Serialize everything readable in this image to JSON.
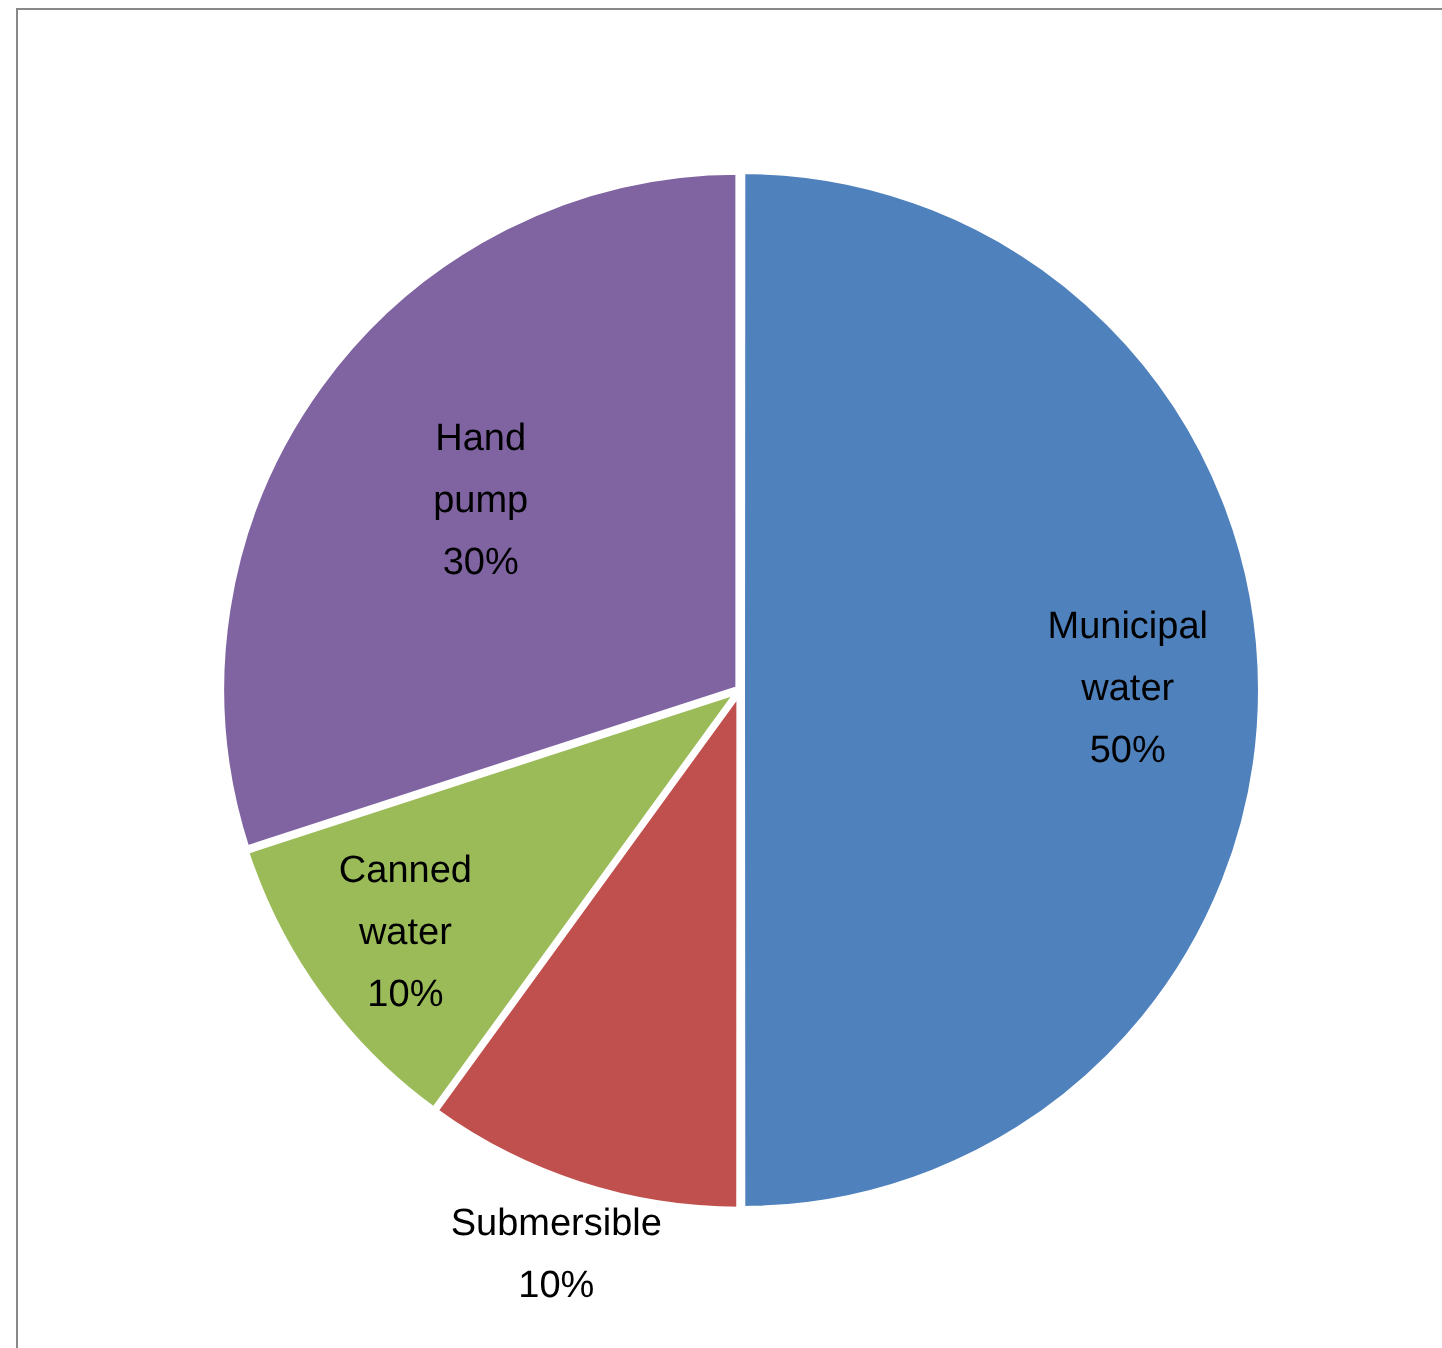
{
  "chart_data": {
    "type": "pie",
    "categories": [
      "Municipal water",
      "Submersible",
      "Canned water",
      "Hand pump"
    ],
    "values": [
      50,
      10,
      10,
      30
    ],
    "colors": [
      "#4f81bd",
      "#c0504d",
      "#9bbb59",
      "#8064a2"
    ],
    "value_labels": [
      "50%",
      "10%",
      "10%",
      "30%"
    ]
  }
}
